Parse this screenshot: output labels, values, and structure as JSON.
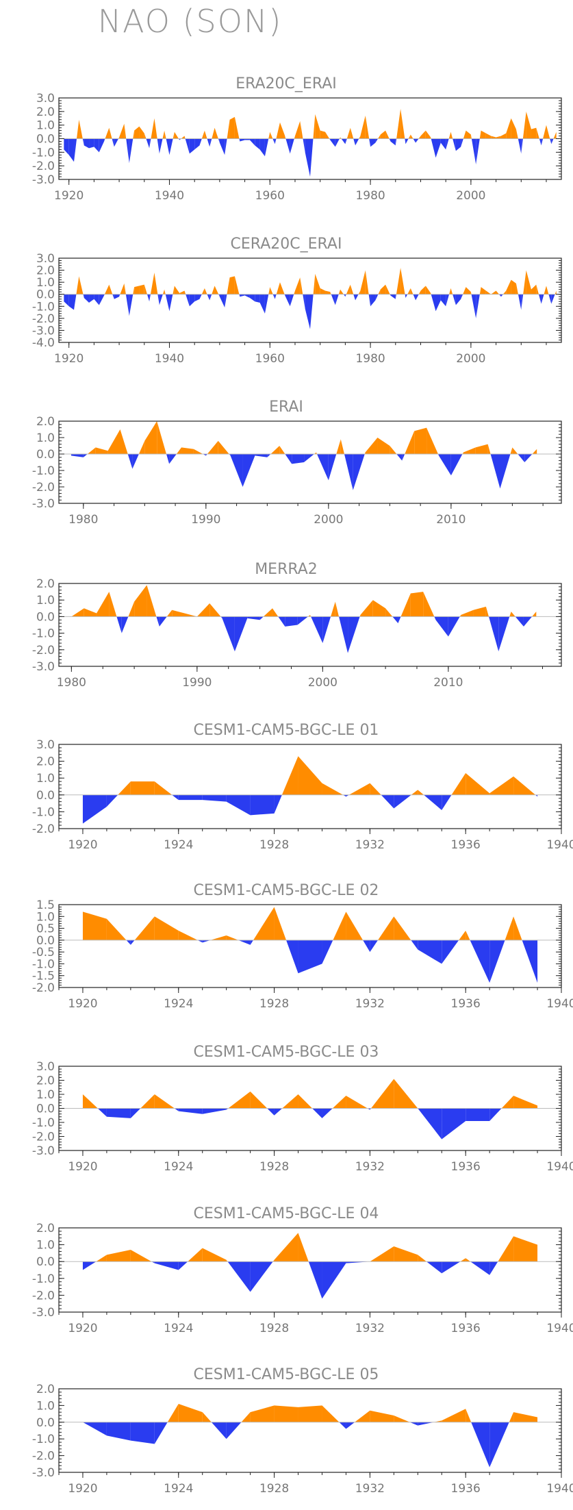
{
  "title": "NAO (SON)",
  "colors": {
    "positive": "#ff8c00",
    "negative": "#2a3cf0",
    "axis": "#222222",
    "text": "#8a8a8a"
  },
  "chart_data": [
    {
      "type": "area",
      "title": "ERA20C_ERAI",
      "xlim": [
        1918,
        2018
      ],
      "ylim": [
        -3.0,
        3.0
      ],
      "xticks": [
        1920,
        1940,
        1960,
        1980,
        2000
      ],
      "yticks": [
        3.0,
        2.0,
        1.0,
        0.0,
        -1.0,
        -2.0,
        -3.0
      ],
      "ytick_labels": [
        "3.0",
        "2.0",
        "1.0",
        "0.0",
        "-1.0",
        "-2.0",
        "-3.0"
      ],
      "x": [
        1919,
        1920,
        1921,
        1922,
        1923,
        1924,
        1925,
        1926,
        1927,
        1928,
        1929,
        1930,
        1931,
        1932,
        1933,
        1934,
        1935,
        1936,
        1937,
        1938,
        1939,
        1940,
        1941,
        1942,
        1943,
        1944,
        1945,
        1946,
        1947,
        1948,
        1949,
        1950,
        1951,
        1952,
        1953,
        1954,
        1955,
        1956,
        1957,
        1958,
        1959,
        1960,
        1961,
        1962,
        1963,
        1964,
        1965,
        1966,
        1967,
        1968,
        1969,
        1970,
        1971,
        1972,
        1973,
        1974,
        1975,
        1976,
        1977,
        1978,
        1979,
        1980,
        1981,
        1982,
        1983,
        1984,
        1985,
        1986,
        1987,
        1988,
        1989,
        1990,
        1991,
        1992,
        1993,
        1994,
        1995,
        1996,
        1997,
        1998,
        1999,
        2000,
        2001,
        2002,
        2003,
        2004,
        2005,
        2006,
        2007,
        2008,
        2009,
        2010,
        2011,
        2012,
        2013,
        2014,
        2015,
        2016,
        2017
      ],
      "y": [
        -0.8,
        -1.2,
        -1.7,
        1.4,
        -0.5,
        -0.7,
        -0.6,
        -1.0,
        -0.2,
        0.8,
        -0.6,
        0.1,
        1.1,
        -1.8,
        0.6,
        0.9,
        0.4,
        -0.7,
        1.5,
        -1.1,
        0.6,
        -1.2,
        0.5,
        -0.1,
        0.2,
        -1.1,
        -0.8,
        -0.5,
        0.6,
        -0.6,
        0.8,
        -0.3,
        -1.2,
        1.4,
        1.6,
        -0.2,
        -0.1,
        -0.1,
        -0.5,
        -0.8,
        -1.3,
        0.5,
        -0.4,
        1.2,
        0.2,
        -1.1,
        0.2,
        1.3,
        -1.0,
        -2.8,
        1.8,
        0.6,
        0.5,
        -0.1,
        -0.6,
        0.1,
        -0.4,
        0.8,
        -0.5,
        0.2,
        1.7,
        -0.6,
        -0.3,
        0.3,
        0.6,
        -0.2,
        -0.5,
        2.2,
        -0.4,
        0.3,
        -0.3,
        0.2,
        0.6,
        0.1,
        -1.4,
        -0.3,
        -0.8,
        0.5,
        -0.9,
        -0.6,
        0.6,
        0.3,
        -1.9,
        0.6,
        0.4,
        0.2,
        0.1,
        0.2,
        0.4,
        1.5,
        0.7,
        -1.1,
        2.0,
        0.7,
        0.8,
        -0.5,
        1.0,
        -0.4,
        0.5
      ]
    },
    {
      "type": "area",
      "title": "CERA20C_ERAI",
      "xlim": [
        1918,
        2018
      ],
      "ylim": [
        -4.0,
        3.0
      ],
      "xticks": [
        1920,
        1940,
        1960,
        1980,
        2000
      ],
      "yticks": [
        3.0,
        2.0,
        1.0,
        0.0,
        -1.0,
        -2.0,
        -3.0,
        -4.0
      ],
      "ytick_labels": [
        "3.0",
        "2.0",
        "1.0",
        "0.0",
        "-1.0",
        "-2.0",
        "-3.0",
        "-4.0"
      ],
      "x": [
        1919,
        1920,
        1921,
        1922,
        1923,
        1924,
        1925,
        1926,
        1927,
        1928,
        1929,
        1930,
        1931,
        1932,
        1933,
        1934,
        1935,
        1936,
        1937,
        1938,
        1939,
        1940,
        1941,
        1942,
        1943,
        1944,
        1945,
        1946,
        1947,
        1948,
        1949,
        1950,
        1951,
        1952,
        1953,
        1954,
        1955,
        1956,
        1957,
        1958,
        1959,
        1960,
        1961,
        1962,
        1963,
        1964,
        1965,
        1966,
        1967,
        1968,
        1969,
        1970,
        1971,
        1972,
        1973,
        1974,
        1975,
        1976,
        1977,
        1978,
        1979,
        1980,
        1981,
        1982,
        1983,
        1984,
        1985,
        1986,
        1987,
        1988,
        1989,
        1990,
        1991,
        1992,
        1993,
        1994,
        1995,
        1996,
        1997,
        1998,
        1999,
        2000,
        2001,
        2002,
        2003,
        2004,
        2005,
        2006,
        2007,
        2008,
        2009,
        2010,
        2011,
        2012,
        2013,
        2014,
        2015,
        2016,
        2017
      ],
      "y": [
        -0.6,
        -1.0,
        -1.3,
        1.5,
        -0.3,
        -0.7,
        -0.4,
        -0.9,
        -0.1,
        0.8,
        -0.4,
        -0.2,
        0.9,
        -1.8,
        0.6,
        0.7,
        0.8,
        -0.6,
        1.8,
        -0.9,
        0.4,
        -1.4,
        0.7,
        0.1,
        0.3,
        -1.0,
        -0.6,
        -0.4,
        0.5,
        -0.5,
        0.7,
        -0.2,
        -1.1,
        1.4,
        1.5,
        -0.2,
        -0.1,
        -0.3,
        -0.6,
        -0.7,
        -1.6,
        0.6,
        -0.4,
        1.0,
        -0.1,
        -1.0,
        0.3,
        1.4,
        -1.2,
        -2.9,
        1.7,
        0.5,
        0.3,
        0.2,
        -0.9,
        0.4,
        -0.2,
        0.8,
        -0.5,
        0.3,
        2.0,
        -1.0,
        -0.5,
        0.4,
        0.8,
        -0.1,
        -0.4,
        2.2,
        -0.3,
        0.5,
        -0.5,
        0.3,
        0.7,
        0.1,
        -1.4,
        -0.5,
        -1.0,
        0.5,
        -0.9,
        -0.4,
        0.6,
        0.2,
        -2.0,
        0.6,
        0.3,
        0.0,
        0.3,
        -0.2,
        0.3,
        1.2,
        0.9,
        -1.3,
        2.0,
        0.4,
        0.8,
        -0.8,
        0.7,
        -0.8,
        0.3
      ]
    },
    {
      "type": "area",
      "title": "ERAI",
      "xlim": [
        1978,
        2019
      ],
      "ylim": [
        -3.0,
        2.0
      ],
      "xticks": [
        1980,
        1990,
        2000,
        2010
      ],
      "yticks": [
        2.0,
        1.0,
        0.0,
        -1.0,
        -2.0,
        -3.0
      ],
      "ytick_labels": [
        "2.0",
        "1.0",
        "0.0",
        "-1.0",
        "-2.0",
        "-3.0"
      ],
      "x": [
        1979,
        1980,
        1981,
        1982,
        1983,
        1984,
        1985,
        1986,
        1987,
        1988,
        1989,
        1990,
        1991,
        1992,
        1993,
        1994,
        1995,
        1996,
        1997,
        1998,
        1999,
        2000,
        2001,
        2002,
        2003,
        2004,
        2005,
        2006,
        2007,
        2008,
        2009,
        2010,
        2011,
        2012,
        2013,
        2014,
        2015,
        2016,
        2017
      ],
      "y": [
        -0.1,
        -0.2,
        0.4,
        0.2,
        1.5,
        -0.9,
        0.8,
        2.0,
        -0.6,
        0.4,
        0.3,
        -0.1,
        0.8,
        -0.1,
        -2.0,
        -0.1,
        -0.2,
        0.5,
        -0.6,
        -0.5,
        0.1,
        -1.6,
        0.9,
        -2.2,
        0.1,
        1.0,
        0.5,
        -0.4,
        1.4,
        1.6,
        -0.1,
        -1.3,
        0.1,
        0.4,
        0.6,
        -2.1,
        0.4,
        -0.5,
        0.3
      ]
    },
    {
      "type": "area",
      "title": "MERRA2",
      "xlim": [
        1979,
        2019
      ],
      "ylim": [
        -3.0,
        2.0
      ],
      "xticks": [
        1980,
        1990,
        2000,
        2010
      ],
      "yticks": [
        2.0,
        1.0,
        0.0,
        -1.0,
        -2.0,
        -3.0
      ],
      "ytick_labels": [
        "2.0",
        "1.0",
        "0.0",
        "-1.0",
        "-2.0",
        "-3.0"
      ],
      "x": [
        1980,
        1981,
        1982,
        1983,
        1984,
        1985,
        1986,
        1987,
        1988,
        1989,
        1990,
        1991,
        1992,
        1993,
        1994,
        1995,
        1996,
        1997,
        1998,
        1999,
        2000,
        2001,
        2002,
        2003,
        2004,
        2005,
        2006,
        2007,
        2008,
        2009,
        2010,
        2011,
        2012,
        2013,
        2014,
        2015,
        2016,
        2017
      ],
      "y": [
        0.0,
        0.5,
        0.2,
        1.5,
        -1.0,
        0.9,
        1.9,
        -0.6,
        0.4,
        0.2,
        0.0,
        0.8,
        -0.1,
        -2.1,
        -0.1,
        -0.2,
        0.5,
        -0.6,
        -0.5,
        0.1,
        -1.6,
        0.9,
        -2.2,
        0.1,
        1.0,
        0.5,
        -0.4,
        1.4,
        1.5,
        -0.2,
        -1.2,
        0.1,
        0.4,
        0.6,
        -2.1,
        0.3,
        -0.6,
        0.3
      ]
    },
    {
      "type": "area",
      "title": "CESM1-CAM5-BGC-LE 01",
      "xlim": [
        1919,
        1940
      ],
      "ylim": [
        -2.0,
        3.0
      ],
      "xticks": [
        1920,
        1924,
        1928,
        1932,
        1936,
        1940
      ],
      "yticks": [
        3.0,
        2.0,
        1.0,
        0.0,
        -1.0,
        -2.0
      ],
      "ytick_labels": [
        "3.0",
        "2.0",
        "1.0",
        "0.0",
        "-1.0",
        "-2.0"
      ],
      "x": [
        1920,
        1921,
        1922,
        1923,
        1924,
        1925,
        1926,
        1927,
        1928,
        1929,
        1930,
        1931,
        1932,
        1933,
        1934,
        1935,
        1936,
        1937,
        1938,
        1939
      ],
      "y": [
        -1.7,
        -0.7,
        0.8,
        0.8,
        -0.3,
        -0.3,
        -0.4,
        -1.2,
        -1.1,
        2.3,
        0.7,
        -0.1,
        0.7,
        -0.8,
        0.3,
        -0.9,
        1.3,
        0.1,
        1.1,
        -0.1
      ]
    },
    {
      "type": "area",
      "title": "CESM1-CAM5-BGC-LE 02",
      "xlim": [
        1919,
        1940
      ],
      "ylim": [
        -2.0,
        1.5
      ],
      "xticks": [
        1920,
        1924,
        1928,
        1932,
        1936,
        1940
      ],
      "yticks": [
        1.5,
        1.0,
        0.5,
        0.0,
        -0.5,
        -1.0,
        -1.5,
        -2.0
      ],
      "ytick_labels": [
        "1.5",
        "1.0",
        "0.5",
        "0.0",
        "-0.5",
        "-1.0",
        "-1.5",
        "-2.0"
      ],
      "x": [
        1920,
        1921,
        1922,
        1923,
        1924,
        1925,
        1926,
        1927,
        1928,
        1929,
        1930,
        1931,
        1932,
        1933,
        1934,
        1935,
        1936,
        1937,
        1938,
        1939
      ],
      "y": [
        1.2,
        0.9,
        -0.2,
        1.0,
        0.4,
        -0.1,
        0.2,
        -0.2,
        1.4,
        -1.4,
        -1.0,
        1.2,
        -0.5,
        1.0,
        -0.4,
        -1.0,
        0.4,
        -1.8,
        1.0,
        -1.8
      ]
    },
    {
      "type": "area",
      "title": "CESM1-CAM5-BGC-LE 03",
      "xlim": [
        1919,
        1940
      ],
      "ylim": [
        -3.0,
        3.0
      ],
      "xticks": [
        1920,
        1924,
        1928,
        1932,
        1936,
        1940
      ],
      "yticks": [
        3.0,
        2.0,
        1.0,
        0.0,
        -1.0,
        -2.0,
        -3.0
      ],
      "ytick_labels": [
        "3.0",
        "2.0",
        "1.0",
        "0.0",
        "-1.0",
        "-2.0",
        "-3.0"
      ],
      "x": [
        1920,
        1921,
        1922,
        1923,
        1924,
        1925,
        1926,
        1927,
        1928,
        1929,
        1930,
        1931,
        1932,
        1933,
        1934,
        1935,
        1936,
        1937,
        1938,
        1939
      ],
      "y": [
        1.0,
        -0.6,
        -0.7,
        1.0,
        -0.2,
        -0.4,
        -0.1,
        1.2,
        -0.5,
        1.0,
        -0.7,
        0.9,
        -0.1,
        2.1,
        0.0,
        -2.2,
        -0.9,
        -0.9,
        0.9,
        0.2
      ]
    },
    {
      "type": "area",
      "title": "CESM1-CAM5-BGC-LE 04",
      "xlim": [
        1919,
        1940
      ],
      "ylim": [
        -3.0,
        2.0
      ],
      "xticks": [
        1920,
        1924,
        1928,
        1932,
        1936,
        1940
      ],
      "yticks": [
        2.0,
        1.0,
        0.0,
        -1.0,
        -2.0,
        -3.0
      ],
      "ytick_labels": [
        "2.0",
        "1.0",
        "0.0",
        "-1.0",
        "-2.0",
        "-3.0"
      ],
      "x": [
        1920,
        1921,
        1922,
        1923,
        1924,
        1925,
        1926,
        1927,
        1928,
        1929,
        1930,
        1931,
        1932,
        1933,
        1934,
        1935,
        1936,
        1937,
        1938,
        1939
      ],
      "y": [
        -0.5,
        0.4,
        0.7,
        -0.1,
        -0.5,
        0.8,
        0.1,
        -1.8,
        0.1,
        1.7,
        -2.2,
        -0.1,
        0.0,
        0.9,
        0.4,
        -0.7,
        0.2,
        -0.8,
        1.5,
        1.0
      ]
    },
    {
      "type": "area",
      "title": "CESM1-CAM5-BGC-LE 05",
      "xlim": [
        1919,
        1940
      ],
      "ylim": [
        -3.0,
        2.0
      ],
      "xticks": [
        1920,
        1924,
        1928,
        1932,
        1936,
        1940
      ],
      "yticks": [
        2.0,
        1.0,
        0.0,
        -1.0,
        -2.0,
        -3.0
      ],
      "ytick_labels": [
        "2.0",
        "1.0",
        "0.0",
        "-1.0",
        "-2.0",
        "-3.0"
      ],
      "x": [
        1920,
        1921,
        1922,
        1923,
        1924,
        1925,
        1926,
        1927,
        1928,
        1929,
        1930,
        1931,
        1932,
        1933,
        1934,
        1935,
        1936,
        1937,
        1938,
        1939
      ],
      "y": [
        0.0,
        -0.8,
        -1.1,
        -1.3,
        1.1,
        0.6,
        -1.0,
        0.6,
        1.0,
        0.9,
        1.0,
        -0.4,
        0.7,
        0.4,
        -0.2,
        0.1,
        0.8,
        -2.7,
        0.6,
        0.3
      ]
    }
  ]
}
